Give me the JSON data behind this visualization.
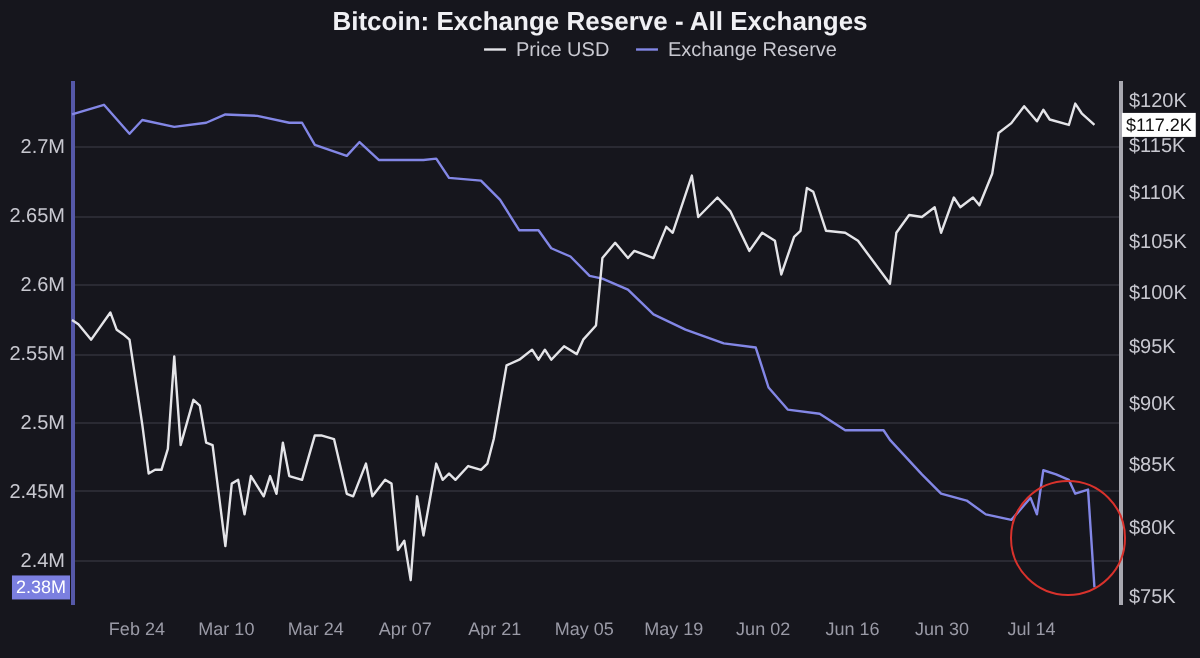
{
  "chart_data": {
    "type": "line",
    "title": "Bitcoin: Exchange Reserve - All Exchanges",
    "xlim": [
      "--02-14",
      "--07-28"
    ],
    "xticks": [
      {
        "value": "--02-24",
        "label": "Feb 24"
      },
      {
        "value": "--03-10",
        "label": "Mar 10"
      },
      {
        "value": "--03-24",
        "label": "Mar 24"
      },
      {
        "value": "--04-07",
        "label": "Apr 07"
      },
      {
        "value": "--04-21",
        "label": "Apr 21"
      },
      {
        "value": "--05-05",
        "label": "May 05"
      },
      {
        "value": "--05-19",
        "label": "May 19"
      },
      {
        "value": "--06-02",
        "label": "Jun 02"
      },
      {
        "value": "--06-16",
        "label": "Jun 16"
      },
      {
        "value": "--06-30",
        "label": "Jun 30"
      },
      {
        "value": "--07-14",
        "label": "Jul 14"
      }
    ],
    "ylim": [
      2.368,
      2.748
    ],
    "yticks": [
      {
        "value": 2.4,
        "label": "2.4M"
      },
      {
        "value": 2.45,
        "label": "2.45M"
      },
      {
        "value": 2.5,
        "label": "2.5M"
      },
      {
        "value": 2.55,
        "label": "2.55M"
      },
      {
        "value": 2.6,
        "label": "2.6M"
      },
      {
        "value": 2.65,
        "label": "2.65M"
      },
      {
        "value": 2.7,
        "label": "2.7M"
      }
    ],
    "y2lim": [
      74.4,
      122.3
    ],
    "y2ticks": [
      {
        "value": 75,
        "label": "$75K"
      },
      {
        "value": 80,
        "label": "$80K"
      },
      {
        "value": 85,
        "label": "$85K"
      },
      {
        "value": 90,
        "label": "$90K"
      },
      {
        "value": 95,
        "label": "$95K"
      },
      {
        "value": 100,
        "label": "$100K"
      },
      {
        "value": 105,
        "label": "$105K"
      },
      {
        "value": 110,
        "label": "$110K"
      },
      {
        "value": 115,
        "label": "$115K"
      },
      {
        "value": 120,
        "label": "$120K"
      }
    ],
    "log": "y2",
    "grid": "y",
    "legend": "top",
    "line_style": "solid",
    "marker": "none",
    "series": [
      {
        "name": "Price USD",
        "color": "#e4e4e8",
        "axis": "y2",
        "x": [
          "--02-14",
          "--02-15",
          "--02-17",
          "--02-20",
          "--02-21",
          "--02-22",
          "--02-23",
          "--02-25",
          "--02-26",
          "--02-27",
          "--02-28",
          "--03-01",
          "--03-02",
          "--03-03",
          "--03-05",
          "--03-06",
          "--03-07",
          "--03-08",
          "--03-10",
          "--03-11",
          "--03-12",
          "--03-13",
          "--03-14",
          "--03-16",
          "--03-17",
          "--03-18",
          "--03-19",
          "--03-20",
          "--03-22",
          "--03-24",
          "--03-25",
          "--03-27",
          "--03-29",
          "--03-30",
          "--04-01",
          "--04-02",
          "--04-04",
          "--04-05",
          "--04-06",
          "--04-07",
          "--04-08",
          "--04-09",
          "--04-10",
          "--04-12",
          "--04-13",
          "--04-14",
          "--04-15",
          "--04-17",
          "--04-19",
          "--04-20",
          "--04-21",
          "--04-23",
          "--04-25",
          "--04-27",
          "--04-28",
          "--04-29",
          "--04-30",
          "--05-02",
          "--05-04",
          "--05-05",
          "--05-07",
          "--05-08",
          "--05-10",
          "--05-12",
          "--05-13",
          "--05-16",
          "--05-18",
          "--05-19",
          "--05-22",
          "--05-23",
          "--05-26",
          "--05-28",
          "--05-31",
          "--06-02",
          "--06-04",
          "--06-05",
          "--06-07",
          "--06-08",
          "--06-09",
          "--06-10",
          "--06-12",
          "--06-15",
          "--06-16",
          "--06-17",
          "--06-22",
          "--06-23",
          "--06-25",
          "--06-27",
          "--06-29",
          "--06-30",
          "--07-02",
          "--07-03",
          "--07-05",
          "--07-06",
          "--07-08",
          "--07-09",
          "--07-11",
          "--07-13",
          "--07-15",
          "--07-16",
          "--07-17",
          "--07-20",
          "--07-21",
          "--07-22",
          "--07-24"
        ],
        "values": [
          97.4,
          97.0,
          95.6,
          98.1,
          96.5,
          96.1,
          95.6,
          88.2,
          84.2,
          84.5,
          84.5,
          86.2,
          94.1,
          86.5,
          90.3,
          89.8,
          86.7,
          86.5,
          78.6,
          83.4,
          83.7,
          81.0,
          84.0,
          82.4,
          84.0,
          82.6,
          86.7,
          84.0,
          83.7,
          87.3,
          87.3,
          87.0,
          82.6,
          82.4,
          85.0,
          82.4,
          83.7,
          83.4,
          78.3,
          79.0,
          76.1,
          82.4,
          79.4,
          85.0,
          83.7,
          84.2,
          83.7,
          84.8,
          84.5,
          85.0,
          87.0,
          93.3,
          93.8,
          94.7,
          93.8,
          94.7,
          93.8,
          95.0,
          94.3,
          95.6,
          96.9,
          103.3,
          104.8,
          103.3,
          104.0,
          103.3,
          106.4,
          105.8,
          111.7,
          107.4,
          109.4,
          108.0,
          104.0,
          105.8,
          105.0,
          101.7,
          105.4,
          106.0,
          110.4,
          110.0,
          106.0,
          105.8,
          105.4,
          105.0,
          100.8,
          105.8,
          107.6,
          107.4,
          108.4,
          105.8,
          109.4,
          108.4,
          109.4,
          108.6,
          111.9,
          116.3,
          117.4,
          119.3,
          117.6,
          118.9,
          117.8,
          117.2,
          119.6,
          118.5,
          117.2
        ]
      },
      {
        "name": "Exchange Reserve",
        "color": "#8387e6",
        "x": [
          "--02-14",
          "--02-19",
          "--02-23",
          "--02-25",
          "--03-02",
          "--03-07",
          "--03-10",
          "--03-15",
          "--03-20",
          "--03-22",
          "--03-24",
          "--03-29",
          "--03-31",
          "--04-03",
          "--04-10",
          "--04-12",
          "--04-14",
          "--04-19",
          "--04-22",
          "--04-25",
          "--04-28",
          "--04-30",
          "--05-03",
          "--05-06",
          "--05-08",
          "--05-12",
          "--05-16",
          "--05-21",
          "--05-27",
          "--06-01",
          "--06-03",
          "--06-06",
          "--06-11",
          "--06-15",
          "--06-21",
          "--06-22",
          "--06-27",
          "--06-30",
          "--07-04",
          "--07-07",
          "--07-11",
          "--07-14",
          "--07-15",
          "--07-16",
          "--07-18",
          "--07-20",
          "--07-21",
          "--07-23",
          "--07-24"
        ],
        "values": [
          2.723,
          2.73,
          2.709,
          2.719,
          2.714,
          2.717,
          2.723,
          2.722,
          2.717,
          2.717,
          2.701,
          2.693,
          2.703,
          2.69,
          2.69,
          2.691,
          2.677,
          2.675,
          2.661,
          2.639,
          2.639,
          2.626,
          2.62,
          2.606,
          2.604,
          2.596,
          2.578,
          2.567,
          2.557,
          2.554,
          2.525,
          2.509,
          2.506,
          2.494,
          2.494,
          2.487,
          2.462,
          2.448,
          2.443,
          2.433,
          2.429,
          2.445,
          2.433,
          2.465,
          2.462,
          2.458,
          2.448,
          2.451,
          2.38
        ]
      }
    ],
    "annotations": [
      "$117.2K",
      "2.38M"
    ]
  }
}
